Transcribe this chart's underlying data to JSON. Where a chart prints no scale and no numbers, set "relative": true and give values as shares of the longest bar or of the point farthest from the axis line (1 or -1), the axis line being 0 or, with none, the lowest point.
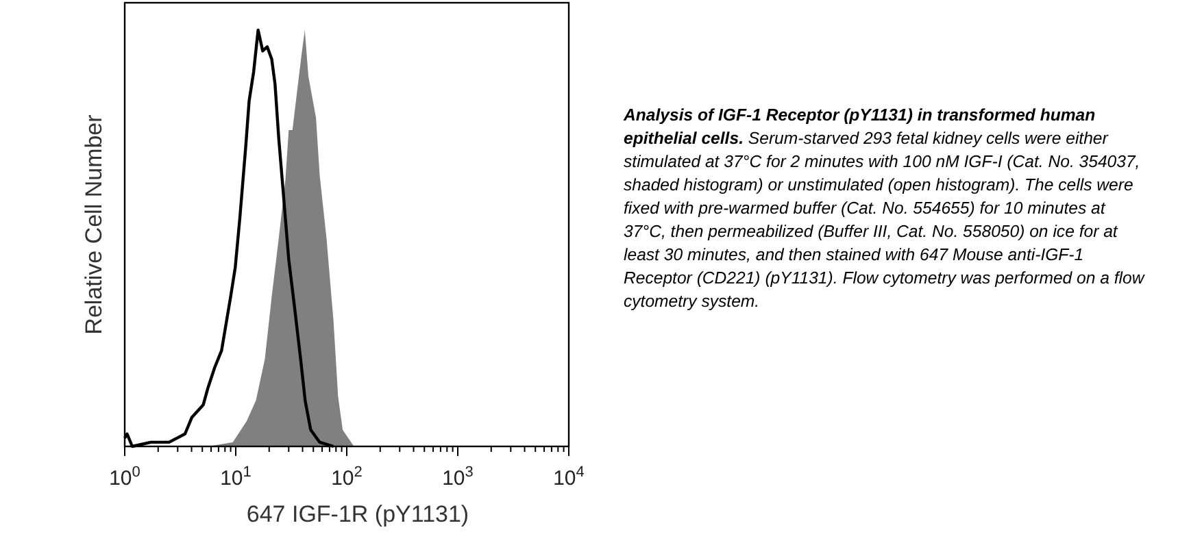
{
  "chart_data": {
    "type": "line",
    "relative": true,
    "log": "x",
    "xlabel": "647 IGF-1R (pY1131)",
    "ylabel": "Relative Cell Number",
    "xlim": [
      1,
      10000
    ],
    "xticks": [
      {
        "value": 1,
        "label": "10$^{0}$"
      },
      {
        "value": 2,
        "label": null
      },
      {
        "value": 3,
        "label": null
      },
      {
        "value": 4,
        "label": null
      },
      {
        "value": 5,
        "label": null
      },
      {
        "value": 6,
        "label": null
      },
      {
        "value": 7,
        "label": null
      },
      {
        "value": 8,
        "label": null
      },
      {
        "value": 9,
        "label": null
      },
      {
        "value": 10,
        "label": "10$^{1}$"
      },
      {
        "value": 20,
        "label": null
      },
      {
        "value": 30,
        "label": null
      },
      {
        "value": 40,
        "label": null
      },
      {
        "value": 50,
        "label": null
      },
      {
        "value": 60,
        "label": null
      },
      {
        "value": 70,
        "label": null
      },
      {
        "value": 80,
        "label": null
      },
      {
        "value": 90,
        "label": null
      },
      {
        "value": 100,
        "label": "10$^{2}$"
      },
      {
        "value": 200,
        "label": null
      },
      {
        "value": 300,
        "label": null
      },
      {
        "value": 400,
        "label": null
      },
      {
        "value": 500,
        "label": null
      },
      {
        "value": 600,
        "label": null
      },
      {
        "value": 700,
        "label": null
      },
      {
        "value": 800,
        "label": null
      },
      {
        "value": 900,
        "label": null
      },
      {
        "value": 1000,
        "label": "10$^{3}$"
      },
      {
        "value": 2000,
        "label": null
      },
      {
        "value": 3000,
        "label": null
      },
      {
        "value": 4000,
        "label": null
      },
      {
        "value": 5000,
        "label": null
      },
      {
        "value": 6000,
        "label": null
      },
      {
        "value": 7000,
        "label": null
      },
      {
        "value": 8000,
        "label": null
      },
      {
        "value": 9000,
        "label": null
      },
      {
        "value": 10000,
        "label": "10$^{4}$"
      }
    ],
    "series": [
      {
        "type": "area",
        "color": "#808080",
        "x": [
          5.6,
          9.4,
          12.5,
          15.2,
          18.3,
          21.1,
          24.4,
          28,
          30,
          32.4,
          35.6,
          39.1,
          41.9,
          45.1,
          52.8,
          57.1,
          65.7,
          76,
          83.5,
          91.9,
          116
        ],
        "values": [
          0,
          0.01,
          0.06,
          0.11,
          0.21,
          0.36,
          0.5,
          0.64,
          0.76,
          0.76,
          0.85,
          0.94,
          1,
          0.89,
          0.79,
          0.65,
          0.5,
          0.3,
          0.12,
          0.04,
          0
        ]
      },
      {
        "color": "#000000",
        "x": [
          1,
          1.05,
          1.17,
          1.72,
          2.51,
          3.49,
          4.03,
          5.1,
          5.61,
          6.47,
          7.45,
          9,
          9.9,
          10.9,
          12.3,
          13.2,
          14.5,
          15.9,
          17.5,
          19.2,
          21.1,
          22.6,
          24.4,
          26.8,
          30,
          34,
          38.4,
          42.2,
          47.3,
          57.1,
          76
        ],
        "values": [
          0.02,
          0.03,
          0,
          0.01,
          0.01,
          0.03,
          0.07,
          0.1,
          0.14,
          0.19,
          0.23,
          0.36,
          0.43,
          0.55,
          0.72,
          0.83,
          0.9,
          1,
          0.95,
          0.96,
          0.93,
          0.87,
          0.74,
          0.61,
          0.45,
          0.33,
          0.21,
          0.11,
          0.04,
          0.01,
          0
        ]
      }
    ],
    "annotations": [
      "Analysis of IGF-1 Receptor (pY1131) in transformed human epithelial cells.",
      "Serum-starved 293 fetal kidney cells were either stimulated at 37°C for 2 minutes with 100 nM  IGF-I (Cat. No. 354037, shaded histogram) or unstimulated (open histogram).  The cells were fixed with pre-warmed buffer (Cat. No. 554655) for 10 minutes at 37°C, then permeabilized (Buffer III, Cat. No. 558050) on ice for at least 30 minutes, and then stained with 647 Mouse anti-IGF-1 Receptor (CD221) (pY1131).  Flow cytometry was performed on a flow cytometry system."
    ]
  }
}
